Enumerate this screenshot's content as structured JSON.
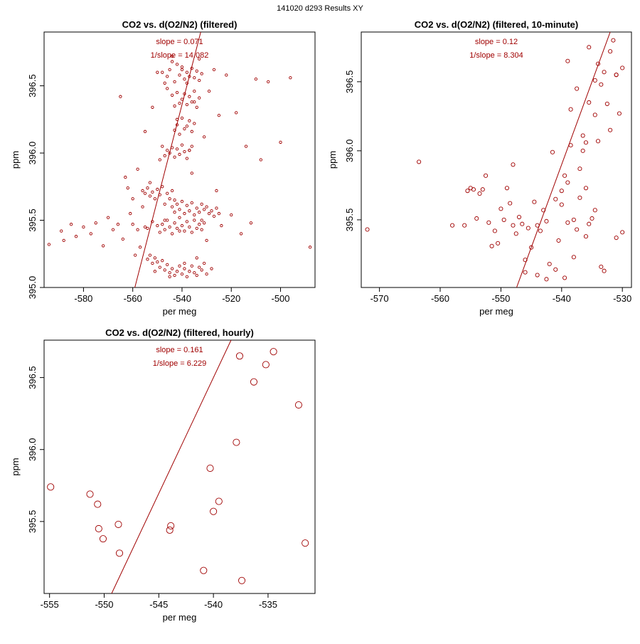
{
  "figure_title": "141020   d293   Results XY",
  "accent_color": "#a00000",
  "chart_data": [
    {
      "type": "scatter",
      "title": "CO2 vs. d(O2/N2) (filtered)",
      "xlabel": "per meg",
      "ylabel": "ppm",
      "xlim": [
        -596,
        -486
      ],
      "ylim": [
        395.0,
        396.9
      ],
      "xticks": [
        -580,
        -560,
        -540,
        -520,
        -500
      ],
      "yticks": [
        395.0,
        395.5,
        396.0,
        396.5
      ],
      "annotations": [
        "slope = 0.071",
        "1/slope = 14.082"
      ],
      "fit": {
        "slope": 0.071,
        "intercept": 434.7
      },
      "marker_size": "small",
      "points": [
        [
          -594,
          395.32
        ],
        [
          -589,
          395.42
        ],
        [
          -588,
          395.35
        ],
        [
          -585,
          395.47
        ],
        [
          -583,
          395.38
        ],
        [
          -580,
          395.45
        ],
        [
          -577,
          395.4
        ],
        [
          -575,
          395.48
        ],
        [
          -572,
          395.31
        ],
        [
          -570,
          395.52
        ],
        [
          -568,
          395.43
        ],
        [
          -566,
          395.47
        ],
        [
          -565,
          396.42
        ],
        [
          -564,
          395.36
        ],
        [
          -563,
          395.82
        ],
        [
          -562,
          395.74
        ],
        [
          -561,
          395.55
        ],
        [
          -560,
          395.66
        ],
        [
          -559,
          395.24
        ],
        [
          -558,
          395.88
        ],
        [
          -557,
          395.3
        ],
        [
          -556,
          395.6
        ],
        [
          -555,
          396.16
        ],
        [
          -554,
          395.44
        ],
        [
          -553,
          395.78
        ],
        [
          -552,
          396.34
        ],
        [
          -551,
          395.12
        ],
        [
          -550,
          396.6
        ],
        [
          -549,
          395.95
        ],
        [
          -548,
          396.05
        ],
        [
          -547,
          395.5
        ],
        [
          -546,
          396.48
        ],
        [
          -545,
          395.08
        ],
        [
          -544,
          396.72
        ],
        [
          -543,
          395.65
        ],
        [
          -542,
          396.25
        ],
        [
          -541,
          395.42
        ],
        [
          -540,
          396.64
        ],
        [
          -539,
          395.18
        ],
        [
          -538,
          396.52
        ],
        [
          -537,
          396.02
        ],
        [
          -536,
          395.85
        ],
        [
          -535,
          396.38
        ],
        [
          -534,
          395.22
        ],
        [
          -533,
          396.7
        ],
        [
          -532,
          395.5
        ],
        [
          -531,
          396.12
        ],
        [
          -530,
          395.35
        ],
        [
          -529,
          396.46
        ],
        [
          -528,
          395.14
        ],
        [
          -527,
          396.62
        ],
        [
          -526,
          395.72
        ],
        [
          -525,
          396.28
        ],
        [
          -524,
          395.46
        ],
        [
          -522,
          396.58
        ],
        [
          -520,
          395.54
        ],
        [
          -518,
          396.3
        ],
        [
          -516,
          395.4
        ],
        [
          -514,
          396.05
        ],
        [
          -512,
          395.48
        ],
        [
          -510,
          396.55
        ],
        [
          -508,
          395.95
        ],
        [
          -505,
          396.53
        ],
        [
          -500,
          396.08
        ],
        [
          -496,
          396.56
        ],
        [
          -488,
          395.3
        ],
        [
          -556,
          395.72
        ],
        [
          -555,
          395.7
        ],
        [
          -554,
          395.74
        ],
        [
          -553,
          395.68
        ],
        [
          -552,
          395.71
        ],
        [
          -551,
          395.66
        ],
        [
          -550,
          395.73
        ],
        [
          -549,
          395.69
        ],
        [
          -548,
          395.75
        ],
        [
          -547,
          395.62
        ],
        [
          -546,
          395.7
        ],
        [
          -545,
          395.66
        ],
        [
          -544,
          395.72
        ],
        [
          -548,
          395.47
        ],
        [
          -547,
          395.43
        ],
        [
          -546,
          395.5
        ],
        [
          -545,
          395.45
        ],
        [
          -544,
          395.4
        ],
        [
          -543,
          395.48
        ],
        [
          -542,
          395.44
        ],
        [
          -541,
          395.52
        ],
        [
          -540,
          395.46
        ],
        [
          -539,
          395.42
        ],
        [
          -538,
          395.49
        ],
        [
          -537,
          395.45
        ],
        [
          -536,
          395.41
        ],
        [
          -535,
          395.5
        ],
        [
          -534,
          395.44
        ],
        [
          -533,
          395.47
        ],
        [
          -532,
          395.43
        ],
        [
          -531,
          395.48
        ],
        [
          -550,
          395.46
        ],
        [
          -549,
          395.41
        ],
        [
          -552,
          395.49
        ],
        [
          -555,
          395.45
        ],
        [
          -558,
          395.43
        ],
        [
          -560,
          395.47
        ],
        [
          -545,
          396.0
        ],
        [
          -544,
          396.04
        ],
        [
          -543,
          395.97
        ],
        [
          -542,
          396.03
        ],
        [
          -541,
          395.99
        ],
        [
          -540,
          396.06
        ],
        [
          -539,
          396.01
        ],
        [
          -538,
          395.96
        ],
        [
          -537,
          396.02
        ],
        [
          -536,
          396.05
        ],
        [
          -546,
          396.02
        ],
        [
          -547,
          395.98
        ],
        [
          -540,
          396.4
        ],
        [
          -539,
          396.44
        ],
        [
          -538,
          396.36
        ],
        [
          -537,
          396.42
        ],
        [
          -536,
          396.38
        ],
        [
          -535,
          396.46
        ],
        [
          -534,
          396.34
        ],
        [
          -533,
          396.41
        ],
        [
          -541,
          396.37
        ],
        [
          -542,
          396.45
        ],
        [
          -543,
          396.35
        ],
        [
          -544,
          396.43
        ],
        [
          -540,
          395.1
        ],
        [
          -539,
          395.14
        ],
        [
          -538,
          395.08
        ],
        [
          -537,
          395.12
        ],
        [
          -536,
          395.16
        ],
        [
          -535,
          395.11
        ],
        [
          -534,
          395.09
        ],
        [
          -533,
          395.15
        ],
        [
          -532,
          395.13
        ],
        [
          -531,
          395.18
        ],
        [
          -530,
          395.1
        ],
        [
          -541,
          395.16
        ],
        [
          -542,
          395.12
        ],
        [
          -543,
          395.09
        ],
        [
          -544,
          395.14
        ],
        [
          -545,
          395.11
        ],
        [
          -546,
          395.17
        ],
        [
          -547,
          395.13
        ],
        [
          -548,
          395.2
        ],
        [
          -549,
          395.15
        ],
        [
          -550,
          395.19
        ],
        [
          -551,
          395.22
        ],
        [
          -552,
          395.18
        ],
        [
          -553,
          395.24
        ],
        [
          -554,
          395.21
        ],
        [
          -541,
          396.58
        ],
        [
          -540,
          396.62
        ],
        [
          -539,
          396.55
        ],
        [
          -538,
          396.6
        ],
        [
          -537,
          396.57
        ],
        [
          -536,
          396.63
        ],
        [
          -535,
          396.56
        ],
        [
          -534,
          396.61
        ],
        [
          -533,
          396.54
        ],
        [
          -532,
          396.59
        ],
        [
          -542,
          396.66
        ],
        [
          -543,
          396.53
        ],
        [
          -544,
          396.68
        ],
        [
          -545,
          396.62
        ],
        [
          -546,
          396.57
        ],
        [
          -547,
          396.52
        ],
        [
          -548,
          396.6
        ],
        [
          -538,
          396.2
        ],
        [
          -537,
          396.24
        ],
        [
          -536,
          396.16
        ],
        [
          -535,
          396.22
        ],
        [
          -539,
          396.18
        ],
        [
          -540,
          396.26
        ],
        [
          -541,
          396.14
        ],
        [
          -542,
          396.21
        ],
        [
          -543,
          396.17
        ],
        [
          -544,
          395.6
        ],
        [
          -543,
          395.56
        ],
        [
          -542,
          395.62
        ],
        [
          -541,
          395.58
        ],
        [
          -540,
          395.64
        ],
        [
          -539,
          395.55
        ],
        [
          -538,
          395.61
        ],
        [
          -537,
          395.57
        ],
        [
          -536,
          395.63
        ],
        [
          -535,
          395.54
        ],
        [
          -534,
          395.59
        ],
        [
          -533,
          395.56
        ],
        [
          -532,
          395.62
        ],
        [
          -531,
          395.58
        ],
        [
          -530,
          395.6
        ],
        [
          -529,
          395.55
        ],
        [
          -528,
          395.57
        ],
        [
          -527,
          395.53
        ],
        [
          -526,
          395.59
        ],
        [
          -525,
          395.55
        ]
      ]
    },
    {
      "type": "scatter",
      "title": "CO2 vs. d(O2/N2) (filtered, 10-minute)",
      "xlabel": "per meg",
      "ylabel": "ppm",
      "xlim": [
        -573,
        -528.5
      ],
      "ylim": [
        395.01,
        396.86
      ],
      "xticks": [
        -570,
        -560,
        -550,
        -540,
        -530
      ],
      "yticks": [
        395.5,
        396.0,
        396.5
      ],
      "annotations": [
        "slope = 0.12",
        "1/slope = 8.304"
      ],
      "fit": {
        "slope": 0.12,
        "intercept": 460.7
      },
      "marker_size": "medium",
      "points": [
        [
          -572,
          395.43
        ],
        [
          -563.5,
          395.92
        ],
        [
          -558,
          395.46
        ],
        [
          -556,
          395.46
        ],
        [
          -555.5,
          395.71
        ],
        [
          -555,
          395.73
        ],
        [
          -554.5,
          395.72
        ],
        [
          -554,
          395.51
        ],
        [
          -553.5,
          395.69
        ],
        [
          -553,
          395.72
        ],
        [
          -552.5,
          395.82
        ],
        [
          -552,
          395.48
        ],
        [
          -551.5,
          395.31
        ],
        [
          -551,
          395.42
        ],
        [
          -550.5,
          395.33
        ],
        [
          -550,
          395.58
        ],
        [
          -549.5,
          395.5
        ],
        [
          -549,
          395.73
        ],
        [
          -548.5,
          395.62
        ],
        [
          -548,
          395.46
        ],
        [
          -548,
          395.9
        ],
        [
          -547.5,
          395.4
        ],
        [
          -547,
          395.52
        ],
        [
          -546.5,
          395.47
        ],
        [
          -546,
          395.21
        ],
        [
          -545.5,
          395.44
        ],
        [
          -545,
          395.3
        ],
        [
          -544.5,
          395.63
        ],
        [
          -544,
          395.46
        ],
        [
          -543.5,
          395.42
        ],
        [
          -543,
          395.57
        ],
        [
          -542.5,
          395.49
        ],
        [
          -542,
          395.18
        ],
        [
          -541.5,
          395.99
        ],
        [
          -541,
          395.65
        ],
        [
          -540.5,
          395.35
        ],
        [
          -540,
          395.71
        ],
        [
          -540,
          395.61
        ],
        [
          -539.5,
          395.82
        ],
        [
          -539,
          395.48
        ],
        [
          -539,
          395.77
        ],
        [
          -538.5,
          396.04
        ],
        [
          -538,
          395.23
        ],
        [
          -538,
          395.5
        ],
        [
          -537.5,
          395.43
        ],
        [
          -537,
          395.66
        ],
        [
          -537,
          395.87
        ],
        [
          -536.5,
          396.11
        ],
        [
          -536,
          395.73
        ],
        [
          -536,
          395.38
        ],
        [
          -535.5,
          395.47
        ],
        [
          -535,
          395.51
        ],
        [
          -534.5,
          395.57
        ],
        [
          -534,
          396.07
        ],
        [
          -534,
          396.63
        ],
        [
          -533.5,
          396.48
        ],
        [
          -533,
          395.13
        ],
        [
          -533,
          396.57
        ],
        [
          -532.5,
          396.34
        ],
        [
          -532,
          396.15
        ],
        [
          -532,
          396.72
        ],
        [
          -531.5,
          396.8
        ],
        [
          -531,
          396.55
        ],
        [
          -531,
          395.37
        ],
        [
          -530.5,
          396.27
        ],
        [
          -530,
          395.41
        ],
        [
          -530,
          396.6
        ],
        [
          -535.5,
          396.75
        ],
        [
          -537.5,
          396.45
        ],
        [
          -538.5,
          396.3
        ],
        [
          -539,
          396.65
        ],
        [
          -535.5,
          396.35
        ],
        [
          -534.5,
          396.26
        ],
        [
          -536.5,
          396.0
        ],
        [
          -533.5,
          395.16
        ],
        [
          -544,
          395.1
        ],
        [
          -546,
          395.12
        ],
        [
          -534.5,
          396.51
        ],
        [
          -536,
          396.06
        ],
        [
          -531,
          396.55
        ],
        [
          -541,
          395.14
        ],
        [
          -539.5,
          395.08
        ],
        [
          -542.5,
          395.07
        ]
      ]
    },
    {
      "type": "scatter",
      "title": "CO2 vs. d(O2/N2) (filtered, hourly)",
      "xlabel": "per meg",
      "ylabel": "ppm",
      "xlim": [
        -555.5,
        -530.7
      ],
      "ylim": [
        395.0,
        396.76
      ],
      "xticks": [
        -555,
        -550,
        -545,
        -540,
        -535
      ],
      "yticks": [
        395.5,
        396.0,
        396.5
      ],
      "annotations": [
        "slope = 0.161",
        "1/slope = 6.229"
      ],
      "fit": {
        "slope": 0.161,
        "intercept": 483.44
      },
      "marker_size": "large",
      "points": [
        [
          -554.9,
          395.74
        ],
        [
          -551.3,
          395.69
        ],
        [
          -550.6,
          395.62
        ],
        [
          -550.5,
          395.45
        ],
        [
          -550.1,
          395.38
        ],
        [
          -548.7,
          395.48
        ],
        [
          -548.6,
          395.28
        ],
        [
          -544.0,
          395.44
        ],
        [
          -543.9,
          395.47
        ],
        [
          -540.9,
          395.16
        ],
        [
          -540.3,
          395.87
        ],
        [
          -540.0,
          395.57
        ],
        [
          -539.5,
          395.64
        ],
        [
          -537.9,
          396.05
        ],
        [
          -537.6,
          396.65
        ],
        [
          -537.4,
          395.09
        ],
        [
          -536.3,
          396.47
        ],
        [
          -535.2,
          396.59
        ],
        [
          -534.5,
          396.68
        ],
        [
          -532.2,
          396.31
        ],
        [
          -531.6,
          395.35
        ]
      ]
    }
  ]
}
